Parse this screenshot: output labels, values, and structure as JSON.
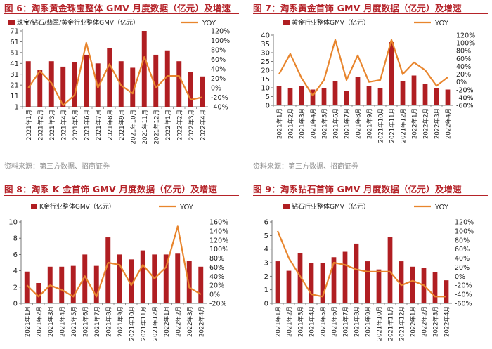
{
  "colors": {
    "bar": "#b01e22",
    "line": "#e8852d",
    "title": "#b52329",
    "axis": "#555555"
  },
  "panels": [
    {
      "title": "图 6：淘系黄金珠宝整体 GMV 月度数据（亿元）及增速",
      "source": "资料来源：第三方数据、招商证券",
      "chart_data": {
        "type": "bar",
        "categories": [
          "2021年1月",
          "2021年2月",
          "2021年3月",
          "2021年4月",
          "2021年5月",
          "2021年6月",
          "2021年7月",
          "2021年8月",
          "2021年9月",
          "2021年10月",
          "2021年11月",
          "2021年12月",
          "2022年1月",
          "2022年2月",
          "2022年3月",
          "2022年4月"
        ],
        "series": [
          {
            "name": "珠宝/钻石/翡翠/黄金行业整体GMV（亿元）",
            "type": "bar",
            "axis": "left",
            "values": [
              43,
              35,
              43,
              38,
              42,
              49,
              41,
              55,
              43,
              37,
              71,
              49,
              53,
              43,
              33,
              29
            ]
          },
          {
            "name": "YOY",
            "type": "line",
            "axis": "right",
            "values": [
              0,
              35,
              10,
              -37,
              -15,
              95,
              0,
              50,
              5,
              -12,
              65,
              0,
              25,
              25,
              -25,
              -20
            ]
          }
        ],
        "left_ticks": [
          "1",
          "11",
          "21",
          "31",
          "41",
          "51",
          "61",
          "71"
        ],
        "right_ticks": [
          "-40%",
          "-20%",
          "0%",
          "20%",
          "40%",
          "60%",
          "80%",
          "100%",
          "120%"
        ],
        "ylim": [
          1,
          71
        ],
        "y2lim": [
          -40,
          120
        ]
      }
    },
    {
      "title": "图 7：淘系黄金首饰 GMV 月度数据（亿元）及增速",
      "source": "资料来源：第三方数据、招商证券",
      "chart_data": {
        "type": "bar",
        "categories": [
          "2021年1月",
          "2021年2月",
          "2021年3月",
          "2021年4月",
          "2021年5月",
          "2021年6月",
          "2021年7月",
          "2021年8月",
          "2021年9月",
          "2021年10月",
          "2021年11月",
          "2021年12月",
          "2022年1月",
          "2022年2月",
          "2022年3月",
          "2022年4月"
        ],
        "series": [
          {
            "name": "黄金行业整体GMV（亿元）",
            "type": "bar",
            "axis": "left",
            "values": [
              11,
              10,
              11,
              9,
              10,
              14,
              8,
              16,
              11,
              10,
              36,
              14,
              17,
              12,
              10,
              9
            ]
          },
          {
            "name": "YOY",
            "type": "line",
            "axis": "right",
            "values": [
              20,
              72,
              10,
              -35,
              5,
              108,
              5,
              68,
              0,
              5,
              108,
              20,
              50,
              30,
              -10,
              12
            ]
          }
        ],
        "left_ticks": [
          "0",
          "5",
          "10",
          "15",
          "20",
          "25",
          "30",
          "35",
          "40"
        ],
        "right_ticks": [
          "-60%",
          "-40%",
          "-20%",
          "0%",
          "20%",
          "40%",
          "60%",
          "80%",
          "100%",
          "120%"
        ],
        "ylim": [
          0,
          40
        ],
        "y2lim": [
          -60,
          120
        ]
      }
    },
    {
      "title": "图 8：淘系 K 金首饰 GMV 月度数据（亿元）及增速",
      "source": "",
      "chart_data": {
        "type": "bar",
        "categories": [
          "2021年1月",
          "2021年2月",
          "2021年3月",
          "2021年4月",
          "2021年5月",
          "2021年6月",
          "2021年7月",
          "2021年8月",
          "2021年9月",
          "2021年10月",
          "2021年11月",
          "2021年12月",
          "2022年1月",
          "2022年2月",
          "2022年3月",
          "2022年4月"
        ],
        "series": [
          {
            "name": "K金行业整体GMV（亿元）",
            "type": "bar",
            "axis": "left",
            "values": [
              3.9,
              2.5,
              4.5,
              4.5,
              4.6,
              6.0,
              4.6,
              8.1,
              6.0,
              5.4,
              6.5,
              6.0,
              6.0,
              6.1,
              5.2,
              4.5
            ]
          },
          {
            "name": "YOY",
            "type": "line",
            "axis": "right",
            "values": [
              20,
              -5,
              20,
              10,
              -5,
              40,
              -5,
              70,
              65,
              20,
              65,
              35,
              60,
              150,
              15,
              0
            ]
          }
        ],
        "left_ticks": [
          "0",
          "2",
          "4",
          "6",
          "8",
          "10"
        ],
        "right_ticks": [
          "-20%",
          "0%",
          "20%",
          "40%",
          "60%",
          "80%",
          "100%",
          "120%",
          "140%",
          "160%"
        ],
        "ylim": [
          0,
          10
        ],
        "y2lim": [
          -20,
          160
        ]
      }
    },
    {
      "title": "图 9：淘系钻石首饰 GMV 月度数据（亿元）及增速",
      "source": "",
      "chart_data": {
        "type": "bar",
        "categories": [
          "2021年1月",
          "2021年2月",
          "2021年3月",
          "2021年4月",
          "2021年5月",
          "2021年6月",
          "2021年7月",
          "2021年8月",
          "2021年9月",
          "2021年10月",
          "2021年11月",
          "2021年12月",
          "2022年1月",
          "2022年2月",
          "2022年3月",
          "2022年4月"
        ],
        "series": [
          {
            "name": "钻石行业整体GMV（亿元）",
            "type": "bar",
            "axis": "left",
            "values": [
              3.1,
              2.4,
              3.7,
              3.0,
              3.0,
              3.4,
              3.8,
              4.4,
              3.1,
              2.5,
              4.9,
              3.1,
              2.7,
              2.6,
              2.3,
              1.7
            ]
          },
          {
            "name": "YOY",
            "type": "line",
            "axis": "right",
            "values": [
              100,
              40,
              0,
              -40,
              -45,
              30,
              25,
              15,
              10,
              10,
              10,
              -20,
              -10,
              -20,
              -45,
              -45
            ]
          }
        ],
        "left_ticks": [
          "0",
          "1",
          "2",
          "3",
          "4",
          "5",
          "6"
        ],
        "right_ticks": [
          "-60%",
          "-40%",
          "-20%",
          "0%",
          "20%",
          "40%",
          "60%",
          "80%",
          "100%",
          "120%"
        ],
        "ylim": [
          0,
          6
        ],
        "y2lim": [
          -60,
          120
        ]
      }
    }
  ]
}
